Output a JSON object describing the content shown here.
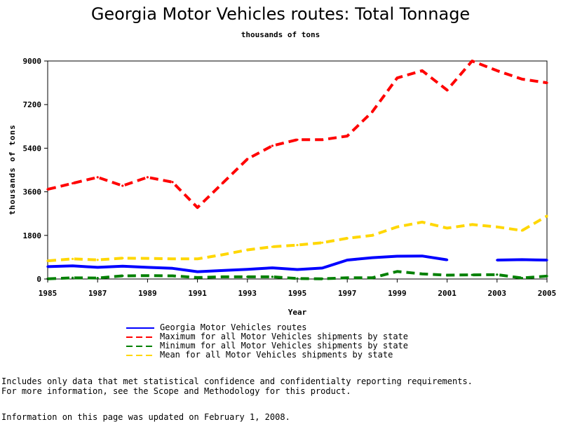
{
  "chart_data": {
    "type": "line",
    "title": "Georgia Motor Vehicles routes: Total Tonnage",
    "subtitle": "thousands of tons",
    "xlabel": "Year",
    "ylabel": "thousands of tons",
    "xlim": [
      1985,
      2005
    ],
    "ylim": [
      0,
      9000
    ],
    "x_ticks": [
      1985,
      1987,
      1989,
      1991,
      1993,
      1995,
      1997,
      1999,
      2001,
      2003,
      2005
    ],
    "y_ticks": [
      0,
      1800,
      3600,
      5400,
      7200,
      9000
    ],
    "grid": false,
    "legend_position": "bottom",
    "x": [
      1985,
      1986,
      1987,
      1988,
      1989,
      1990,
      1991,
      1992,
      1993,
      1994,
      1995,
      1996,
      1997,
      1998,
      1999,
      2000,
      2001,
      2002,
      2003,
      2004,
      2005
    ],
    "series": [
      {
        "name": "Georgia Motor Vehicles routes",
        "color": "#0000ff",
        "style": "solid",
        "values": [
          510,
          540,
          480,
          530,
          480,
          440,
          300,
          350,
          400,
          460,
          390,
          450,
          780,
          880,
          940,
          950,
          790,
          null,
          780,
          800,
          780
        ]
      },
      {
        "name": "Maximum for all Motor Vehicles shipments by state",
        "color": "#ff0000",
        "style": "dashed",
        "values": [
          3700,
          3950,
          4200,
          3850,
          4200,
          4000,
          2950,
          3950,
          4950,
          5500,
          5750,
          5750,
          5900,
          6900,
          8300,
          8600,
          7800,
          9000,
          8600,
          8250,
          8100
        ]
      },
      {
        "name": "Minimum for all Motor Vehicles shipments by state",
        "color": "#008000",
        "style": "dashed",
        "values": [
          10,
          50,
          40,
          130,
          140,
          130,
          60,
          90,
          90,
          90,
          20,
          10,
          50,
          50,
          310,
          210,
          160,
          170,
          180,
          40,
          120
        ]
      },
      {
        "name": "Mean for all Motor Vehicles shipments by state",
        "color": "#ffd700",
        "style": "dashed",
        "values": [
          750,
          830,
          790,
          860,
          850,
          830,
          830,
          1000,
          1200,
          1330,
          1400,
          1500,
          1680,
          1800,
          2150,
          2350,
          2100,
          2250,
          2150,
          2000,
          2600
        ]
      }
    ]
  },
  "footnotes": [
    "Includes only data that met statistical confidence and confidentialty reporting requirements.",
    "For more information, see the Scope and Methodology for this product."
  ],
  "updated_text": "Information on this page was updated on February 1, 2008."
}
